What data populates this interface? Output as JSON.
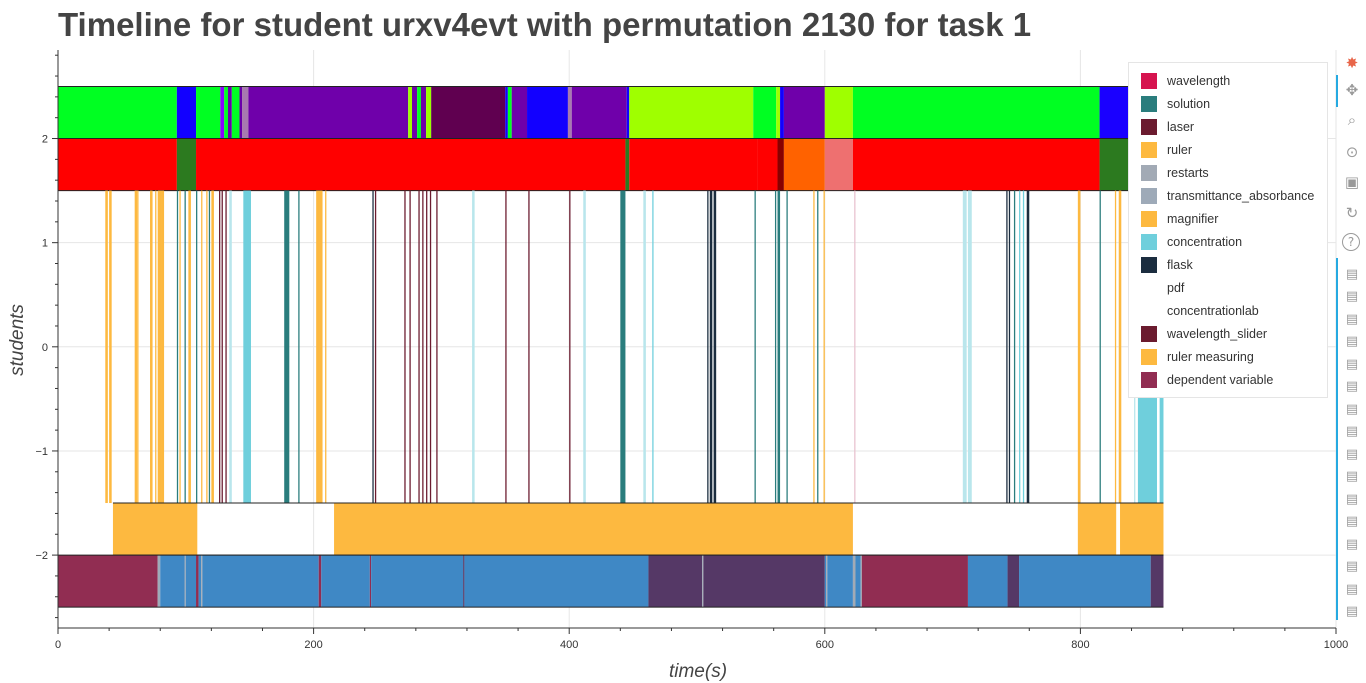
{
  "chart_data": {
    "type": "timeline",
    "title": "Timeline for student urxv4evt with permutation 2130 for task 1",
    "xlabel": "time(s)",
    "ylabel": "students",
    "xlim": [
      0,
      1000
    ],
    "ylim": [
      -2.7,
      2.85
    ],
    "x_ticks": [
      0,
      200,
      400,
      600,
      800,
      1000
    ],
    "x_tick_labels": [
      "0",
      "200",
      "400",
      "600",
      "800",
      "1000"
    ],
    "y_ticks": [
      -2,
      -1,
      0,
      1,
      2
    ],
    "y_tick_labels": [
      "−2",
      "−1",
      "0",
      "1",
      "2"
    ],
    "legend_position": "top-right",
    "grid": true,
    "legend": [
      {
        "label": "wavelength",
        "color": "#d6144f"
      },
      {
        "label": "solution",
        "color": "#2a7d7d"
      },
      {
        "label": "laser",
        "color": "#6b1b2f"
      },
      {
        "label": "ruler",
        "color": "#fdb940"
      },
      {
        "label": "restarts",
        "color": "#a2aab5"
      },
      {
        "label": "transmittance_absorbance",
        "color": "#9eaab8"
      },
      {
        "label": "magnifier",
        "color": "#fdb940"
      },
      {
        "label": "concentration",
        "color": "#6fcfdc"
      },
      {
        "label": "flask",
        "color": "#1b2d3f"
      },
      {
        "label": "pdf",
        "color": "#ffffff"
      },
      {
        "label": "concentrationlab",
        "color": "#ffffff"
      },
      {
        "label": "wavelength_slider",
        "color": "#6b1b2f"
      },
      {
        "label": "ruler measuring",
        "color": "#fdb940"
      },
      {
        "label": "dependent variable",
        "color": "#912d52"
      }
    ],
    "rows": [
      {
        "y_range": [
          2,
          2.5
        ],
        "segments": [
          [
            0,
            93,
            "#00ff22"
          ],
          [
            93,
            108,
            "#1200ff"
          ],
          [
            108,
            127,
            "#00ff22"
          ],
          [
            127,
            130,
            "#8c00ff"
          ],
          [
            130,
            133,
            "#00ff22"
          ],
          [
            133,
            136,
            "#6a00aa"
          ],
          [
            136,
            142,
            "#00ff22"
          ],
          [
            142,
            144,
            "#6a00aa"
          ],
          [
            144,
            149,
            "#a77ab0"
          ],
          [
            149,
            274,
            "#6f00aa"
          ],
          [
            274,
            277,
            "#9aff00"
          ],
          [
            277,
            281,
            "#6f00aa"
          ],
          [
            281,
            284,
            "#00ff22"
          ],
          [
            284,
            288,
            "#6f00aa"
          ],
          [
            288,
            292,
            "#9aff00"
          ],
          [
            292,
            350,
            "#600050"
          ],
          [
            350,
            352,
            "#1200ff"
          ],
          [
            352,
            355,
            "#00ff22"
          ],
          [
            355,
            367,
            "#6f00aa"
          ],
          [
            367,
            399,
            "#1200ff"
          ],
          [
            399,
            402,
            "#a77ab0"
          ],
          [
            402,
            445,
            "#6f00aa"
          ],
          [
            445,
            447,
            "#1200ff"
          ],
          [
            447,
            544,
            "#9fff00"
          ],
          [
            544,
            562,
            "#00ff22"
          ],
          [
            562,
            565,
            "#9fff00"
          ],
          [
            565,
            568,
            "#1200ff"
          ],
          [
            568,
            600,
            "#6f00aa"
          ],
          [
            600,
            622,
            "#9fff00"
          ],
          [
            622,
            815,
            "#00ff22"
          ],
          [
            815,
            865,
            "#1a00ff"
          ]
        ]
      },
      {
        "y_range": [
          1.5,
          2
        ],
        "segments": [
          [
            0,
            93,
            "#ff0000"
          ],
          [
            93,
            108,
            "#2c7a1f"
          ],
          [
            108,
            444,
            "#ff0000"
          ],
          [
            444,
            447,
            "#2c7a1f"
          ],
          [
            447,
            547,
            "#ff0000"
          ],
          [
            547,
            563,
            "#ff0000"
          ],
          [
            563,
            568,
            "#880000"
          ],
          [
            568,
            600,
            "#ff6200"
          ],
          [
            600,
            622,
            "#ee7070"
          ],
          [
            622,
            815,
            "#ff0000"
          ],
          [
            815,
            838,
            "#2c7a1f"
          ],
          [
            838,
            865,
            "#ff0000"
          ]
        ]
      },
      {
        "y_range": [
          -1.5,
          1.5
        ],
        "segments": [
          [
            37,
            39,
            "#fdb940"
          ],
          [
            40,
            42,
            "#fdb940"
          ],
          [
            60,
            62,
            "#fdb940"
          ],
          [
            62,
            63,
            "#fdb940"
          ],
          [
            72,
            74,
            "#fdb940"
          ],
          [
            76,
            77,
            "#fdb940"
          ],
          [
            78,
            81,
            "#fdb940"
          ],
          [
            81,
            83,
            "#fdb940"
          ],
          [
            93,
            94,
            "#2a7d7d"
          ],
          [
            95,
            96,
            "#fdb940"
          ],
          [
            99,
            100,
            "#2a7d7d"
          ],
          [
            102,
            104,
            "#fdb940"
          ],
          [
            108,
            109,
            "#2a7d7d"
          ],
          [
            112,
            113,
            "#fdb940"
          ],
          [
            116,
            117,
            "#fdb940"
          ],
          [
            118,
            119,
            "#2a7d7d"
          ],
          [
            120,
            122,
            "#fdb940"
          ],
          [
            126,
            127,
            "#6b1b2f"
          ],
          [
            128,
            129,
            "#6b1b2f"
          ],
          [
            131,
            132,
            "#6b1b2f"
          ],
          [
            134,
            136,
            "#b9e6ec"
          ],
          [
            145,
            151,
            "#6fcfdc"
          ],
          [
            177,
            181,
            "#2a7d7d"
          ],
          [
            188,
            189,
            "#2a7d7d"
          ],
          [
            202,
            205,
            "#fdb940"
          ],
          [
            205,
            207,
            "#fdb940"
          ],
          [
            209,
            210,
            "#fdb940"
          ],
          [
            246,
            247,
            "#1b2d3f"
          ],
          [
            248,
            249,
            "#6b1b2f"
          ],
          [
            271,
            272,
            "#6b1b2f"
          ],
          [
            275,
            276,
            "#6b1b2f"
          ],
          [
            282,
            283,
            "#6b1b2f"
          ],
          [
            285,
            286,
            "#6b1b2f"
          ],
          [
            288,
            289,
            "#6b1b2f"
          ],
          [
            291,
            292,
            "#6b1b2f"
          ],
          [
            296,
            297,
            "#6b1b2f"
          ],
          [
            324,
            326,
            "#b9e6ec"
          ],
          [
            350,
            351,
            "#6b1b2f"
          ],
          [
            368,
            369,
            "#6b1b2f"
          ],
          [
            400,
            401,
            "#6b1b2f"
          ],
          [
            411,
            413,
            "#b9e6ec"
          ],
          [
            440,
            444,
            "#2a7d7d"
          ],
          [
            458,
            460,
            "#b9e6ec"
          ],
          [
            465,
            466,
            "#6fcfdc"
          ],
          [
            508,
            509,
            "#1b2d3f"
          ],
          [
            510,
            512,
            "#1b2d3f"
          ],
          [
            513,
            515,
            "#1b2d3f"
          ],
          [
            545,
            546,
            "#2a7d7d"
          ],
          [
            561,
            562,
            "#2a7d7d"
          ],
          [
            563,
            565,
            "#2a7d7d"
          ],
          [
            570,
            571,
            "#2a7d7d"
          ],
          [
            591,
            592,
            "#fdb940"
          ],
          [
            594,
            595,
            "#2a7d7d"
          ],
          [
            599,
            600,
            "#fdb940"
          ],
          [
            623,
            624,
            "#e9c3d0"
          ],
          [
            708,
            711,
            "#b9e6ec"
          ],
          [
            712,
            715,
            "#b9e6ec"
          ],
          [
            742,
            743,
            "#1b2d3f"
          ],
          [
            744,
            745,
            "#1b2d3f"
          ],
          [
            748,
            749,
            "#2a7d7d"
          ],
          [
            752,
            753,
            "#6fcfdc"
          ],
          [
            755,
            756,
            "#6fcfdc"
          ],
          [
            758,
            760,
            "#1b2d3f"
          ],
          [
            798,
            800,
            "#fdb940"
          ],
          [
            815,
            816,
            "#2a7d7d"
          ],
          [
            827,
            828,
            "#fdb940"
          ],
          [
            830,
            832,
            "#fdb940"
          ],
          [
            842,
            843,
            "#b9e6ec"
          ],
          [
            845,
            860,
            "#6fcfdc"
          ],
          [
            860,
            862,
            "#ffffff"
          ],
          [
            862,
            865,
            "#6fcfdc"
          ]
        ]
      },
      {
        "y_range": [
          -2,
          -1.5
        ],
        "segments": [
          [
            43,
            109,
            "#fdb940"
          ],
          [
            216,
            622,
            "#fdb940"
          ],
          [
            798,
            828,
            "#fdb940"
          ],
          [
            831,
            865,
            "#fdb940"
          ]
        ]
      },
      {
        "y_range": [
          -2.5,
          -2
        ],
        "segments": [
          [
            0,
            78,
            "#912d52"
          ],
          [
            78,
            80,
            "#9eaab8"
          ],
          [
            80,
            99,
            "#3f88c5"
          ],
          [
            99,
            100,
            "#9eaab8"
          ],
          [
            100,
            108,
            "#3f88c5"
          ],
          [
            108,
            110,
            "#912d52"
          ],
          [
            110,
            112,
            "#3f88c5"
          ],
          [
            112,
            113,
            "#a2aab5"
          ],
          [
            113,
            204,
            "#3f88c5"
          ],
          [
            204,
            206,
            "#912d52"
          ],
          [
            206,
            244,
            "#3f88c5"
          ],
          [
            244,
            245,
            "#912d52"
          ],
          [
            245,
            317,
            "#3f88c5"
          ],
          [
            317,
            318,
            "#553866"
          ],
          [
            318,
            462,
            "#3f88c5"
          ],
          [
            462,
            504,
            "#553866"
          ],
          [
            504,
            505,
            "#a2aab5"
          ],
          [
            505,
            600,
            "#553866"
          ],
          [
            600,
            601,
            "#3f88c5"
          ],
          [
            601,
            602,
            "#a2aab5"
          ],
          [
            602,
            622,
            "#3f88c5"
          ],
          [
            622,
            624,
            "#a2aab5"
          ],
          [
            624,
            628,
            "#3f88c5"
          ],
          [
            628,
            629,
            "#a2aab5"
          ],
          [
            629,
            712,
            "#912d52"
          ],
          [
            712,
            743,
            "#3f88c5"
          ],
          [
            743,
            752,
            "#553866"
          ],
          [
            752,
            855,
            "#3f88c5"
          ],
          [
            855,
            865,
            "#553866"
          ]
        ]
      }
    ]
  },
  "toolbar": {
    "icons": [
      "bokeh-logo-icon",
      "pan-icon",
      "box-zoom-icon",
      "wheel-zoom-icon",
      "save-icon",
      "reset-icon",
      "help-icon",
      "hover-icon"
    ]
  }
}
